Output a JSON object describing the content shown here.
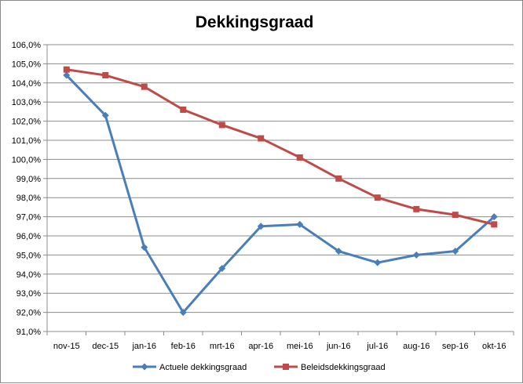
{
  "chart_data": {
    "type": "line",
    "title": "Dekkingsgraad",
    "xlabel": "",
    "ylabel": "",
    "categories": [
      "nov-15",
      "dec-15",
      "jan-16",
      "feb-16",
      "mrt-16",
      "apr-16",
      "mei-16",
      "jun-16",
      "jul-16",
      "aug-16",
      "sep-16",
      "okt-16"
    ],
    "y_ticks": [
      "91,0%",
      "92,0%",
      "93,0%",
      "94,0%",
      "95,0%",
      "96,0%",
      "97,0%",
      "98,0%",
      "99,0%",
      "100,0%",
      "101,0%",
      "102,0%",
      "103,0%",
      "104,0%",
      "105,0%",
      "106,0%"
    ],
    "ylim": [
      91,
      106
    ],
    "grid": true,
    "legend_position": "bottom",
    "series": [
      {
        "name": "Actuele dekkingsgraad",
        "color": "#4a7ebb",
        "marker": "diamond",
        "values": [
          104.4,
          102.3,
          95.4,
          92.0,
          94.3,
          96.5,
          96.6,
          95.2,
          94.6,
          95.0,
          95.2,
          97.0
        ]
      },
      {
        "name": "Beleidsdekkingsgraad",
        "color": "#be4b48",
        "marker": "square",
        "values": [
          104.7,
          104.4,
          103.8,
          102.6,
          101.8,
          101.1,
          100.1,
          99.0,
          98.0,
          97.4,
          97.1,
          96.6
        ]
      }
    ]
  }
}
